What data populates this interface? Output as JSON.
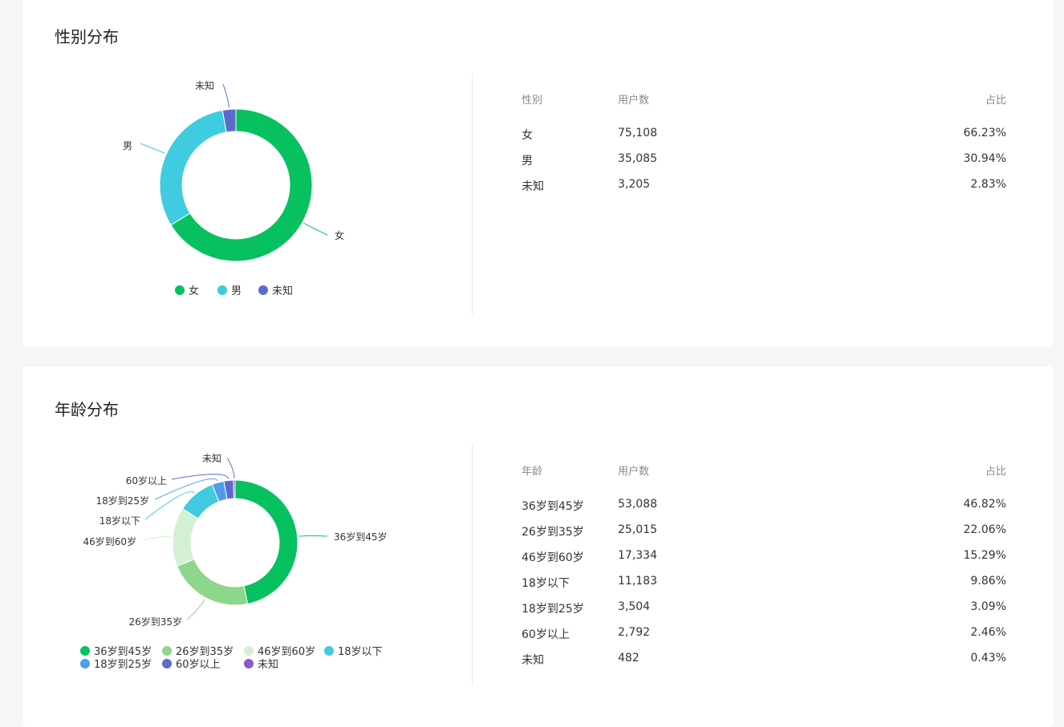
{
  "gender": {
    "title": "性别分布",
    "table": {
      "headers": [
        "性别",
        "用户数",
        "占比"
      ],
      "rows": [
        [
          "女",
          "75,108",
          "66.23%"
        ],
        [
          "男",
          "35,085",
          "30.94%"
        ],
        [
          "未知",
          "3,205",
          "2.83%"
        ]
      ]
    }
  },
  "age": {
    "title": "年龄分布",
    "table": {
      "headers": [
        "年龄",
        "用户数",
        "占比"
      ],
      "rows": [
        [
          "36岁到45岁",
          "53,088",
          "46.82%"
        ],
        [
          "26岁到35岁",
          "25,015",
          "22.06%"
        ],
        [
          "46岁到60岁",
          "17,334",
          "15.29%"
        ],
        [
          "18岁以下",
          "11,183",
          "9.86%"
        ],
        [
          "18岁到25岁",
          "3,504",
          "3.09%"
        ],
        [
          "60岁以上",
          "2,792",
          "2.46%"
        ],
        [
          "未知",
          "482",
          "0.43%"
        ]
      ]
    }
  },
  "chart_data": [
    {
      "type": "pie",
      "title": "性别分布",
      "categories": [
        "女",
        "男",
        "未知"
      ],
      "values": [
        75108,
        35085,
        3205
      ],
      "colors": [
        "#07c160",
        "#40cbe0",
        "#5b6bcc"
      ],
      "legend": "bottom"
    },
    {
      "type": "pie",
      "title": "年龄分布",
      "categories": [
        "36岁到45岁",
        "26岁到35岁",
        "46岁到60岁",
        "18岁以下",
        "18岁到25岁",
        "60岁以上",
        "未知"
      ],
      "values": [
        53088,
        25015,
        17334,
        11183,
        3504,
        2792,
        482
      ],
      "colors": [
        "#07c160",
        "#8dd68c",
        "#d4f0d4",
        "#40cbe0",
        "#4f9de8",
        "#5b6bcc",
        "#8b59c9"
      ],
      "legend": "bottom"
    }
  ]
}
